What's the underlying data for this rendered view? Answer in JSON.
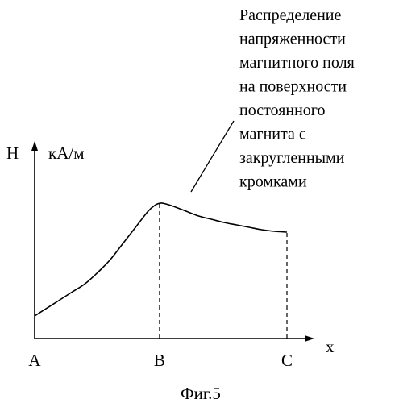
{
  "chart_data": {
    "type": "line",
    "title": "",
    "xlabel": "x",
    "ylabel": "H",
    "yunit": "кА/м",
    "tick_labels": [
      {
        "label": "A",
        "x": 0
      },
      {
        "label": "B",
        "x": 0.495
      },
      {
        "label": "C",
        "x": 1.0
      }
    ],
    "marker_x": [
      0.495,
      1.0
    ],
    "xlim": [
      0,
      1.0
    ],
    "ylim": [
      0,
      1.0
    ],
    "series": [
      {
        "name": "",
        "x": [
          0,
          0.05,
          0.1,
          0.15,
          0.2,
          0.25,
          0.3,
          0.35,
          0.4,
          0.45,
          0.48,
          0.5,
          0.52,
          0.55,
          0.6,
          0.65,
          0.7,
          0.75,
          0.8,
          0.85,
          0.9,
          0.95,
          1.0
        ],
        "y": [
          0.14,
          0.19,
          0.24,
          0.29,
          0.34,
          0.41,
          0.49,
          0.59,
          0.69,
          0.79,
          0.83,
          0.84,
          0.835,
          0.82,
          0.79,
          0.76,
          0.74,
          0.72,
          0.705,
          0.69,
          0.675,
          0.665,
          0.66
        ]
      }
    ],
    "annotation": "Распределение напряженности магнитного поля на поверхности постоянного магнита с закругленными кромками"
  },
  "figure": {
    "caption": "Фиг.5",
    "annotation_lines": [
      "Распределение",
      "напряженности",
      "магнитного поля",
      "на поверхности",
      "постоянного",
      "магнита с",
      "закругленными",
      "кромками"
    ]
  }
}
